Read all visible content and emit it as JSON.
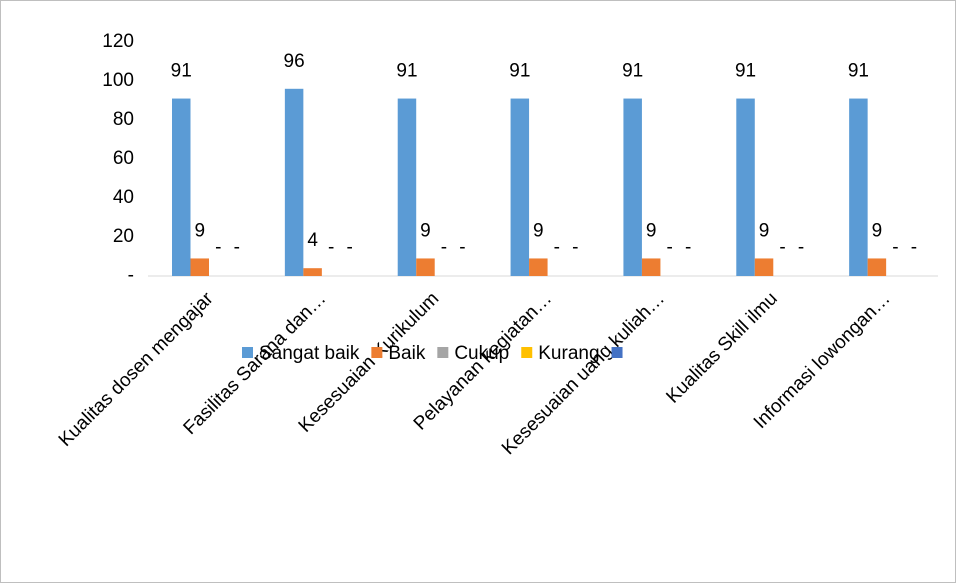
{
  "chart_data": {
    "type": "bar",
    "categories": [
      "Kualitas dosen mengajar",
      "Fasilitas Sarana dan…",
      "Kesesuaian Kurikulum",
      "Pelayanan kegiatan…",
      "Kesesuaian uang kuliah…",
      "Kualitas Skill ilmu",
      "Informasi lowongan…"
    ],
    "series": [
      {
        "name": "Sangat baik",
        "color": "#5b9bd5",
        "values": [
          91,
          96,
          91,
          91,
          91,
          91,
          91
        ]
      },
      {
        "name": "Baik",
        "color": "#ed7d31",
        "values": [
          9,
          4,
          9,
          9,
          9,
          9,
          9
        ]
      },
      {
        "name": "Cukup",
        "color": "#a5a5a5",
        "values": [
          0,
          0,
          0,
          0,
          0,
          0,
          0
        ],
        "value_labels": [
          "-",
          "-",
          "-",
          "-",
          "-",
          "-",
          "-"
        ]
      },
      {
        "name": "Kurang",
        "color": "#ffc000",
        "values": [
          0,
          0,
          0,
          0,
          0,
          0,
          0
        ],
        "value_labels": [
          "-",
          "-",
          "-",
          "-",
          "-",
          "-",
          "-"
        ]
      },
      {
        "color": "#4472c4"
      }
    ],
    "ylim": [
      0,
      120
    ],
    "yticks": [
      {
        "value": 0,
        "label": "-"
      },
      20,
      40,
      60,
      80,
      100,
      120
    ]
  }
}
